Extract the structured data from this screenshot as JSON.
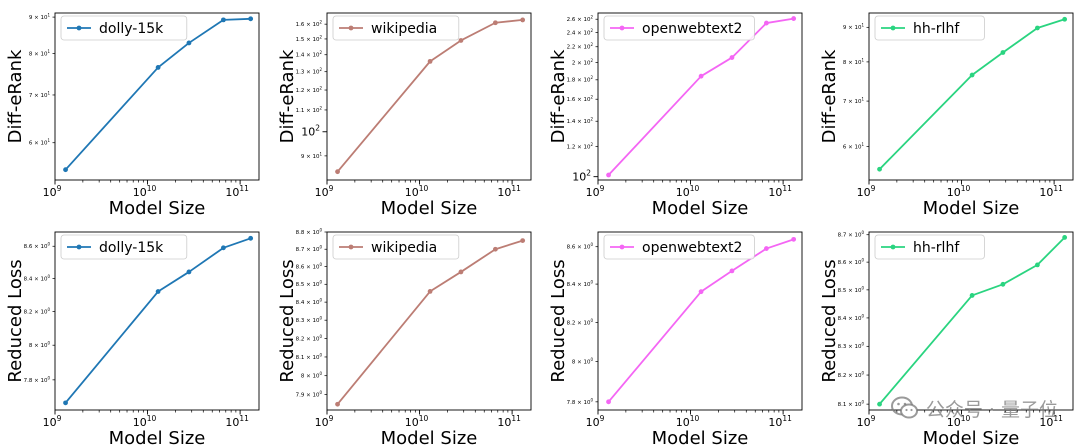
{
  "chart_data": [
    {
      "type": "line",
      "panel": "r1c1",
      "series": [
        {
          "name": "dolly-15k",
          "x": [
            1300000000.0,
            13000000000.0,
            28000000000.0,
            66000000000.0,
            130000000000.0
          ],
          "y": [
            55,
            76.5,
            82.8,
            89.2,
            89.5
          ]
        }
      ],
      "xlabel": "Model Size",
      "ylabel": "Diff-eRank",
      "xscale": "log",
      "yscale": "log",
      "xlim": [
        1000000000.0,
        160000000000.0
      ],
      "ylim": [
        53.2,
        91.2
      ],
      "xticks": [
        {
          "v": 1000000000.0,
          "b": "10",
          "e": "9"
        },
        {
          "v": 10000000000.0,
          "b": "10",
          "e": "10"
        },
        {
          "v": 100000000000.0,
          "b": "10",
          "e": "11"
        }
      ],
      "yticks": [
        {
          "v": 60,
          "b": "6 × 10",
          "e": "1"
        },
        {
          "v": 70,
          "b": "7 × 10",
          "e": "1"
        },
        {
          "v": 80,
          "b": "8 × 10",
          "e": "1"
        },
        {
          "v": 90,
          "b": "9 × 10",
          "e": "1"
        }
      ],
      "legend": "upper-left",
      "color": "#1f77b4"
    },
    {
      "type": "line",
      "panel": "r1c2",
      "series": [
        {
          "name": "wikipedia",
          "x": [
            1300000000.0,
            13000000000.0,
            28000000000.0,
            66000000000.0,
            130000000000.0
          ],
          "y": [
            84,
            136,
            149,
            161,
            163
          ]
        }
      ],
      "xlabel": "Model Size",
      "ylabel": "Diff-eRank",
      "xscale": "log",
      "yscale": "log",
      "xlim": [
        1000000000.0,
        160000000000.0
      ],
      "ylim": [
        81,
        168
      ],
      "xticks": [
        {
          "v": 1000000000.0,
          "b": "10",
          "e": "9"
        },
        {
          "v": 10000000000.0,
          "b": "10",
          "e": "10"
        },
        {
          "v": 100000000000.0,
          "b": "10",
          "e": "11"
        }
      ],
      "yticks": [
        {
          "v": 90,
          "b": "9 × 10",
          "e": "1"
        },
        {
          "v": 100,
          "b": "10",
          "e": "2",
          "major": true
        },
        {
          "v": 110,
          "b": "1.1 × 10",
          "e": "2"
        },
        {
          "v": 120,
          "b": "1.2 × 10",
          "e": "2"
        },
        {
          "v": 130,
          "b": "1.3 × 10",
          "e": "2"
        },
        {
          "v": 140,
          "b": "1.4 × 10",
          "e": "2"
        },
        {
          "v": 150,
          "b": "1.5 × 10",
          "e": "2"
        },
        {
          "v": 160,
          "b": "1.6 × 10",
          "e": "2"
        }
      ],
      "legend": "upper-left",
      "color": "#bc7d74"
    },
    {
      "type": "line",
      "panel": "r1c3",
      "series": [
        {
          "name": "openwebtext2",
          "x": [
            1300000000.0,
            13000000000.0,
            28000000000.0,
            66000000000.0,
            130000000000.0
          ],
          "y": [
            101,
            184,
            206,
            254,
            261
          ]
        }
      ],
      "xlabel": "Model Size",
      "ylabel": "Diff-eRank",
      "xscale": "log",
      "yscale": "log",
      "xlim": [
        1000000000.0,
        160000000000.0
      ],
      "ylim": [
        98,
        270
      ],
      "xticks": [
        {
          "v": 1000000000.0,
          "b": "10",
          "e": "9"
        },
        {
          "v": 10000000000.0,
          "b": "10",
          "e": "10"
        },
        {
          "v": 100000000000.0,
          "b": "10",
          "e": "11"
        }
      ],
      "yticks": [
        {
          "v": 100,
          "b": "10",
          "e": "2",
          "major": true
        },
        {
          "v": 120,
          "b": "1.2 × 10",
          "e": "2"
        },
        {
          "v": 140,
          "b": "1.4 × 10",
          "e": "2"
        },
        {
          "v": 160,
          "b": "1.6 × 10",
          "e": "2"
        },
        {
          "v": 180,
          "b": "1.8 × 10",
          "e": "2"
        },
        {
          "v": 200,
          "b": "2 × 10",
          "e": "2"
        },
        {
          "v": 220,
          "b": "2.2 × 10",
          "e": "2"
        },
        {
          "v": 240,
          "b": "2.4 × 10",
          "e": "2"
        },
        {
          "v": 260,
          "b": "2.6 × 10",
          "e": "2"
        }
      ],
      "legend": "upper-left",
      "color": "#f466f4"
    },
    {
      "type": "line",
      "panel": "r1c4",
      "series": [
        {
          "name": "hh-rlhf",
          "x": [
            1300000000.0,
            13000000000.0,
            28000000000.0,
            66000000000.0,
            130000000000.0
          ],
          "y": [
            55.5,
            76.5,
            82.6,
            89.8,
            92.5
          ]
        }
      ],
      "xlabel": "Model Size",
      "ylabel": "Diff-eRank",
      "xscale": "log",
      "yscale": "log",
      "xlim": [
        1000000000.0,
        160000000000.0
      ],
      "ylim": [
        53.5,
        94.5
      ],
      "xticks": [
        {
          "v": 1000000000.0,
          "b": "10",
          "e": "9"
        },
        {
          "v": 10000000000.0,
          "b": "10",
          "e": "10"
        },
        {
          "v": 100000000000.0,
          "b": "10",
          "e": "11"
        }
      ],
      "yticks": [
        {
          "v": 60,
          "b": "6 × 10",
          "e": "1"
        },
        {
          "v": 70,
          "b": "7 × 10",
          "e": "1"
        },
        {
          "v": 80,
          "b": "8 × 10",
          "e": "1"
        },
        {
          "v": 90,
          "b": "9 × 10",
          "e": "1"
        }
      ],
      "legend": "upper-left",
      "color": "#2ad480"
    },
    {
      "type": "line",
      "panel": "r2c1",
      "series": [
        {
          "name": "dolly-15k",
          "x": [
            1300000000.0,
            13000000000.0,
            28000000000.0,
            66000000000.0,
            130000000000.0
          ],
          "y": [
            7.67,
            8.32,
            8.44,
            8.59,
            8.65
          ]
        }
      ],
      "xlabel": "Model Size",
      "ylabel": "Reduced Loss",
      "xscale": "log",
      "yscale": "log",
      "xlim": [
        1000000000.0,
        160000000000.0
      ],
      "ylim": [
        7.63,
        8.69
      ],
      "xticks": [
        {
          "v": 1000000000.0,
          "b": "10",
          "e": "9"
        },
        {
          "v": 10000000000.0,
          "b": "10",
          "e": "10"
        },
        {
          "v": 100000000000.0,
          "b": "10",
          "e": "11"
        }
      ],
      "yticks": [
        {
          "v": 7.8,
          "b": "7.8 × 10",
          "e": "0"
        },
        {
          "v": 8.0,
          "b": "8 × 10",
          "e": "0"
        },
        {
          "v": 8.2,
          "b": "8.2 × 10",
          "e": "0"
        },
        {
          "v": 8.4,
          "b": "8.4 × 10",
          "e": "0"
        },
        {
          "v": 8.6,
          "b": "8.6 × 10",
          "e": "0"
        }
      ],
      "legend": "upper-left",
      "color": "#1f77b4"
    },
    {
      "type": "line",
      "panel": "r2c2",
      "series": [
        {
          "name": "wikipedia",
          "x": [
            1300000000.0,
            13000000000.0,
            28000000000.0,
            66000000000.0,
            130000000000.0
          ],
          "y": [
            7.85,
            8.46,
            8.57,
            8.7,
            8.75
          ]
        }
      ],
      "xlabel": "Model Size",
      "ylabel": "Reduced Loss",
      "xscale": "log",
      "yscale": "log",
      "xlim": [
        1000000000.0,
        160000000000.0
      ],
      "ylim": [
        7.82,
        8.8
      ],
      "xticks": [
        {
          "v": 1000000000.0,
          "b": "10",
          "e": "9"
        },
        {
          "v": 10000000000.0,
          "b": "10",
          "e": "10"
        },
        {
          "v": 100000000000.0,
          "b": "10",
          "e": "11"
        }
      ],
      "yticks": [
        {
          "v": 7.9,
          "b": "7.9 × 10",
          "e": "0"
        },
        {
          "v": 8.0,
          "b": "8 × 10",
          "e": "0"
        },
        {
          "v": 8.1,
          "b": "8.1 × 10",
          "e": "0"
        },
        {
          "v": 8.2,
          "b": "8.2 × 10",
          "e": "0"
        },
        {
          "v": 8.3,
          "b": "8.3 × 10",
          "e": "0"
        },
        {
          "v": 8.4,
          "b": "8.4 × 10",
          "e": "0"
        },
        {
          "v": 8.5,
          "b": "8.5 × 10",
          "e": "0"
        },
        {
          "v": 8.6,
          "b": "8.6 × 10",
          "e": "0"
        },
        {
          "v": 8.7,
          "b": "8.7 × 10",
          "e": "0"
        },
        {
          "v": 8.8,
          "b": "8.8 × 10",
          "e": "0"
        }
      ],
      "legend": "upper-left",
      "color": "#bc7d74"
    },
    {
      "type": "line",
      "panel": "r2c3",
      "series": [
        {
          "name": "openwebtext2",
          "x": [
            1300000000.0,
            13000000000.0,
            28000000000.0,
            66000000000.0,
            130000000000.0
          ],
          "y": [
            7.8,
            8.36,
            8.47,
            8.59,
            8.64
          ]
        }
      ],
      "xlabel": "Model Size",
      "ylabel": "Reduced Loss",
      "xscale": "log",
      "yscale": "log",
      "xlim": [
        1000000000.0,
        160000000000.0
      ],
      "ylim": [
        7.76,
        8.68
      ],
      "xticks": [
        {
          "v": 1000000000.0,
          "b": "10",
          "e": "9"
        },
        {
          "v": 10000000000.0,
          "b": "10",
          "e": "10"
        },
        {
          "v": 100000000000.0,
          "b": "10",
          "e": "11"
        }
      ],
      "yticks": [
        {
          "v": 7.8,
          "b": "7.8 × 10",
          "e": "0"
        },
        {
          "v": 8.0,
          "b": "8 × 10",
          "e": "0"
        },
        {
          "v": 8.2,
          "b": "8.2 × 10",
          "e": "0"
        },
        {
          "v": 8.4,
          "b": "8.4 × 10",
          "e": "0"
        },
        {
          "v": 8.6,
          "b": "8.6 × 10",
          "e": "0"
        }
      ],
      "legend": "upper-left",
      "color": "#f466f4"
    },
    {
      "type": "line",
      "panel": "r2c4",
      "series": [
        {
          "name": "hh-rlhf",
          "x": [
            1300000000.0,
            13000000000.0,
            28000000000.0,
            66000000000.0,
            130000000000.0
          ],
          "y": [
            8.1,
            8.48,
            8.52,
            8.59,
            8.69
          ]
        }
      ],
      "xlabel": "Model Size",
      "ylabel": "Reduced Loss",
      "xscale": "log",
      "yscale": "log",
      "xlim": [
        1000000000.0,
        160000000000.0
      ],
      "ylim": [
        8.08,
        8.71
      ],
      "xticks": [
        {
          "v": 1000000000.0,
          "b": "10",
          "e": "9"
        },
        {
          "v": 10000000000.0,
          "b": "10",
          "e": "10"
        },
        {
          "v": 100000000000.0,
          "b": "10",
          "e": "11"
        }
      ],
      "yticks": [
        {
          "v": 8.1,
          "b": "8.1 × 10",
          "e": "0"
        },
        {
          "v": 8.2,
          "b": "8.2 × 10",
          "e": "0"
        },
        {
          "v": 8.3,
          "b": "8.3 × 10",
          "e": "0"
        },
        {
          "v": 8.4,
          "b": "8.4 × 10",
          "e": "0"
        },
        {
          "v": 8.5,
          "b": "8.5 × 10",
          "e": "0"
        },
        {
          "v": 8.6,
          "b": "8.6 × 10",
          "e": "0"
        },
        {
          "v": 8.7,
          "b": "8.7 × 10",
          "e": "0"
        }
      ],
      "legend": "upper-left",
      "color": "#2ad480"
    }
  ],
  "watermark": {
    "text": "公众号 · 量子位",
    "icon": "wechat-icon"
  }
}
